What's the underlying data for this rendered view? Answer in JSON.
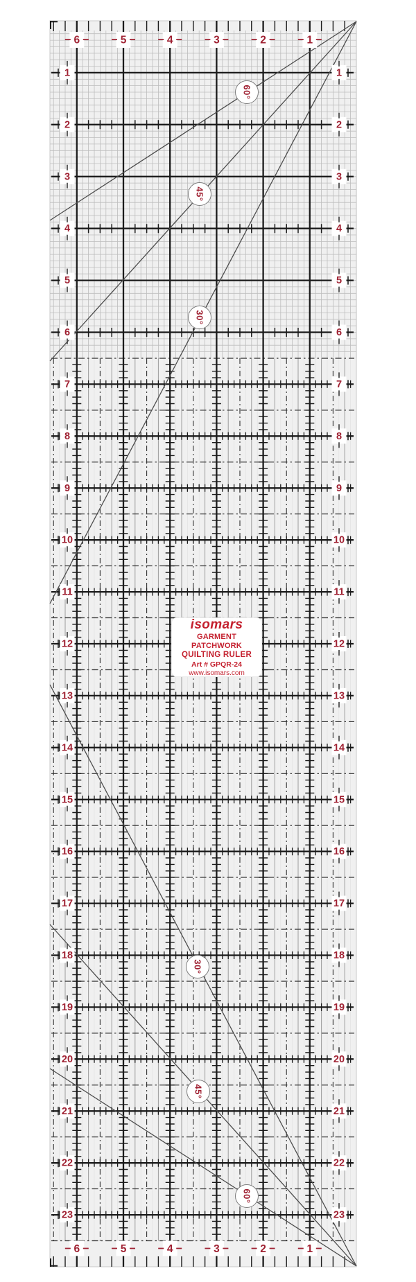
{
  "page": {
    "background": "#ffffff"
  },
  "ruler": {
    "brand_label": {
      "brand": "isomars",
      "product_line1": "GARMENT PATCHWORK",
      "product_line2": "QUILTING RULER",
      "art_number": "Art # GPQR-24",
      "website": "www.isomars.com"
    },
    "scale": {
      "top_edge_numbers": [
        "6",
        "5",
        "4",
        "3",
        "2",
        "1"
      ],
      "bottom_edge_numbers": [
        "6",
        "5",
        "4",
        "3",
        "2",
        "1"
      ],
      "left_row_numbers": [
        "1",
        "2",
        "3",
        "4",
        "5",
        "6",
        "7",
        "8",
        "9",
        "10",
        "11",
        "12",
        "13",
        "14",
        "15",
        "16",
        "17",
        "18",
        "19",
        "20",
        "21",
        "22",
        "23"
      ],
      "right_row_numbers": [
        "1",
        "2",
        "3",
        "4",
        "5",
        "6",
        "7",
        "8",
        "9",
        "10",
        "11",
        "12",
        "13",
        "14",
        "15",
        "16",
        "17",
        "18",
        "19",
        "20",
        "21",
        "22",
        "23"
      ],
      "angle_labels_upper": [
        "60°",
        "45°",
        "30°"
      ],
      "angle_labels_lower": [
        "30°",
        "45°",
        "60°"
      ]
    },
    "colors": {
      "scale_number_red": "#a02233",
      "brand_red": "#c4202e",
      "line_black": "#1b1b1b",
      "fine_grid_gray": "#bdbdbd",
      "mid_gray": "#9c9c9c",
      "diagonal_gray": "#4d4d4d",
      "body_tint": "#f0f0f0"
    }
  }
}
